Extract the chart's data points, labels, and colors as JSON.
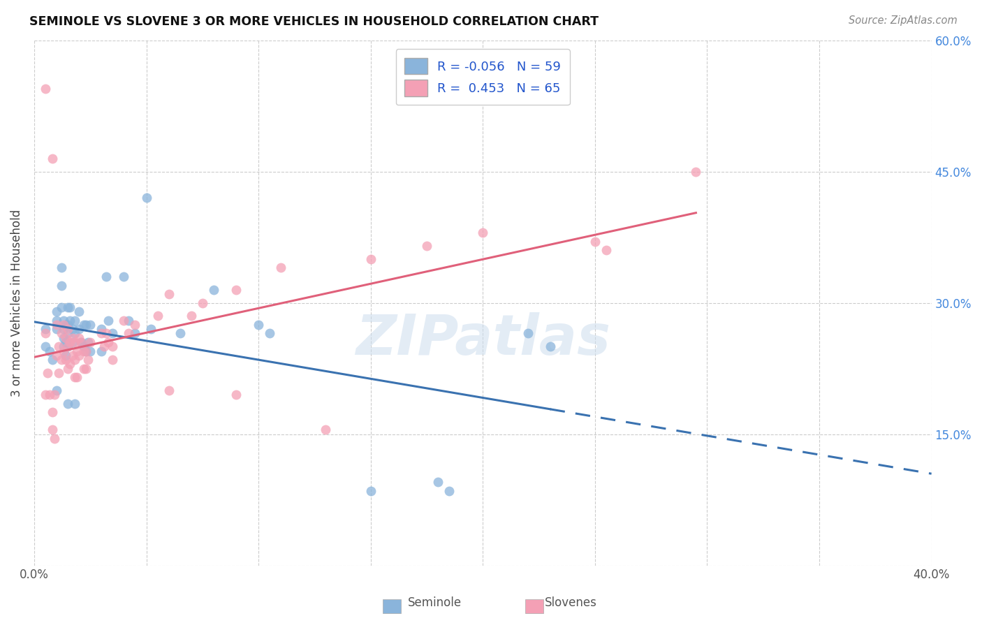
{
  "title": "SEMINOLE VS SLOVENE 3 OR MORE VEHICLES IN HOUSEHOLD CORRELATION CHART",
  "source": "Source: ZipAtlas.com",
  "ylabel": "3 or more Vehicles in Household",
  "x_min": 0.0,
  "x_max": 0.4,
  "y_min": 0.0,
  "y_max": 0.6,
  "seminole_R": -0.056,
  "seminole_N": 59,
  "slovene_R": 0.453,
  "slovene_N": 65,
  "seminole_color": "#8ab4db",
  "slovene_color": "#f4a0b5",
  "seminole_line_color": "#3a72b0",
  "slovene_line_color": "#e0607a",
  "watermark": "ZIPatlas",
  "seminole_x": [
    0.005,
    0.005,
    0.007,
    0.008,
    0.01,
    0.01,
    0.01,
    0.01,
    0.012,
    0.012,
    0.012,
    0.013,
    0.013,
    0.013,
    0.013,
    0.014,
    0.014,
    0.014,
    0.015,
    0.015,
    0.015,
    0.015,
    0.015,
    0.016,
    0.016,
    0.017,
    0.017,
    0.018,
    0.018,
    0.018,
    0.02,
    0.02,
    0.021,
    0.022,
    0.022,
    0.023,
    0.023,
    0.024,
    0.025,
    0.025,
    0.03,
    0.03,
    0.032,
    0.033,
    0.035,
    0.04,
    0.042,
    0.045,
    0.05,
    0.052,
    0.065,
    0.08,
    0.1,
    0.105,
    0.15,
    0.18,
    0.185,
    0.22,
    0.23
  ],
  "seminole_y": [
    0.27,
    0.25,
    0.245,
    0.235,
    0.29,
    0.28,
    0.27,
    0.2,
    0.34,
    0.32,
    0.295,
    0.28,
    0.27,
    0.26,
    0.25,
    0.275,
    0.255,
    0.24,
    0.295,
    0.275,
    0.265,
    0.25,
    0.185,
    0.295,
    0.28,
    0.27,
    0.255,
    0.28,
    0.265,
    0.185,
    0.29,
    0.27,
    0.255,
    0.275,
    0.25,
    0.275,
    0.245,
    0.255,
    0.275,
    0.245,
    0.27,
    0.245,
    0.33,
    0.28,
    0.265,
    0.33,
    0.28,
    0.265,
    0.42,
    0.27,
    0.265,
    0.315,
    0.275,
    0.265,
    0.085,
    0.095,
    0.085,
    0.265,
    0.25
  ],
  "slovene_x": [
    0.005,
    0.005,
    0.006,
    0.007,
    0.008,
    0.008,
    0.009,
    0.009,
    0.01,
    0.01,
    0.011,
    0.011,
    0.012,
    0.012,
    0.013,
    0.013,
    0.014,
    0.014,
    0.015,
    0.015,
    0.015,
    0.016,
    0.016,
    0.017,
    0.017,
    0.018,
    0.018,
    0.018,
    0.019,
    0.019,
    0.02,
    0.02,
    0.021,
    0.022,
    0.022,
    0.023,
    0.023,
    0.024,
    0.025,
    0.03,
    0.031,
    0.032,
    0.033,
    0.035,
    0.035,
    0.04,
    0.042,
    0.045,
    0.055,
    0.06,
    0.07,
    0.075,
    0.09,
    0.11,
    0.15,
    0.175,
    0.2,
    0.25,
    0.255,
    0.295,
    0.005,
    0.008,
    0.06,
    0.09,
    0.13
  ],
  "slovene_y": [
    0.265,
    0.195,
    0.22,
    0.195,
    0.175,
    0.155,
    0.145,
    0.195,
    0.275,
    0.24,
    0.25,
    0.22,
    0.265,
    0.235,
    0.275,
    0.245,
    0.26,
    0.235,
    0.27,
    0.25,
    0.225,
    0.255,
    0.23,
    0.26,
    0.24,
    0.255,
    0.235,
    0.215,
    0.245,
    0.215,
    0.26,
    0.24,
    0.255,
    0.245,
    0.225,
    0.245,
    0.225,
    0.235,
    0.255,
    0.265,
    0.25,
    0.265,
    0.255,
    0.25,
    0.235,
    0.28,
    0.265,
    0.275,
    0.285,
    0.31,
    0.285,
    0.3,
    0.315,
    0.34,
    0.35,
    0.365,
    0.38,
    0.37,
    0.36,
    0.45,
    0.545,
    0.465,
    0.2,
    0.195,
    0.155
  ]
}
